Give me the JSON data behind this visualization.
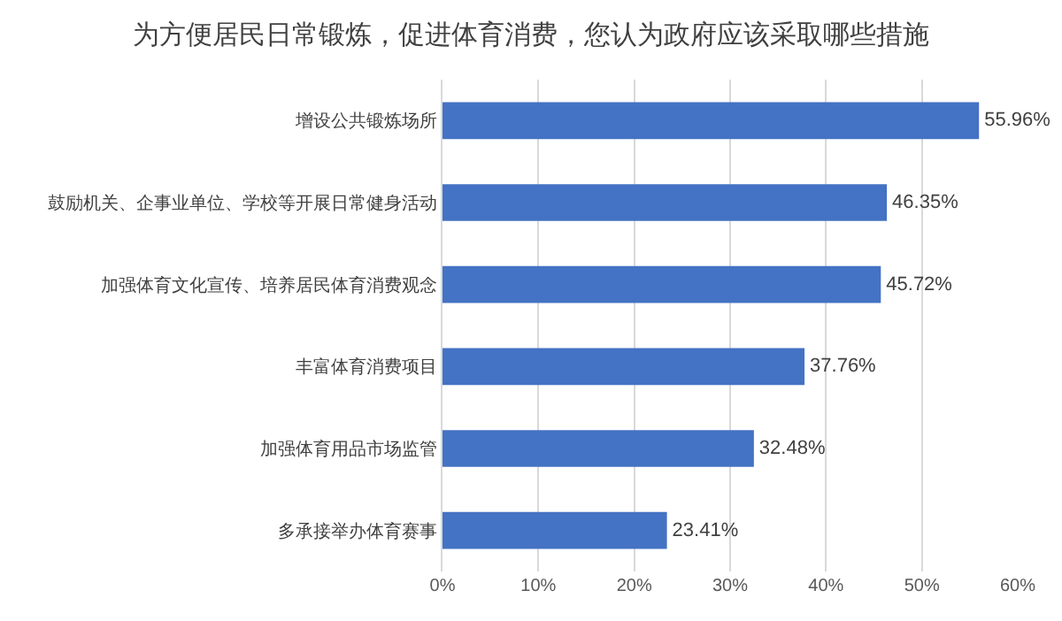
{
  "chart_data": {
    "type": "bar",
    "orientation": "horizontal",
    "title": "为方便居民日常锻炼，促进体育消费，您认为政府应该采取哪些措施",
    "categories": [
      "增设公共锻炼场所",
      "鼓励机关、企事业单位、学校等开展日常健身活动",
      "加强体育文化宣传、培养居民体育消费观念",
      "丰富体育消费项目",
      "加强体育用品市场监管",
      "多承接举办体育赛事"
    ],
    "values": [
      55.96,
      46.35,
      45.72,
      37.76,
      32.48,
      23.41
    ],
    "value_labels": [
      "55.96%",
      "46.35%",
      "45.72%",
      "37.76%",
      "32.48%",
      "23.41%"
    ],
    "color": "#4472c4",
    "xlim": [
      0,
      60
    ],
    "xticks": [
      {
        "value": 0,
        "label": "0%"
      },
      {
        "value": 10,
        "label": "10%"
      },
      {
        "value": 20,
        "label": "20%"
      },
      {
        "value": 30,
        "label": "30%"
      },
      {
        "value": 40,
        "label": "40%"
      },
      {
        "value": 50,
        "label": "50%"
      },
      {
        "value": 60,
        "label": "60%"
      }
    ],
    "grid": "x"
  }
}
